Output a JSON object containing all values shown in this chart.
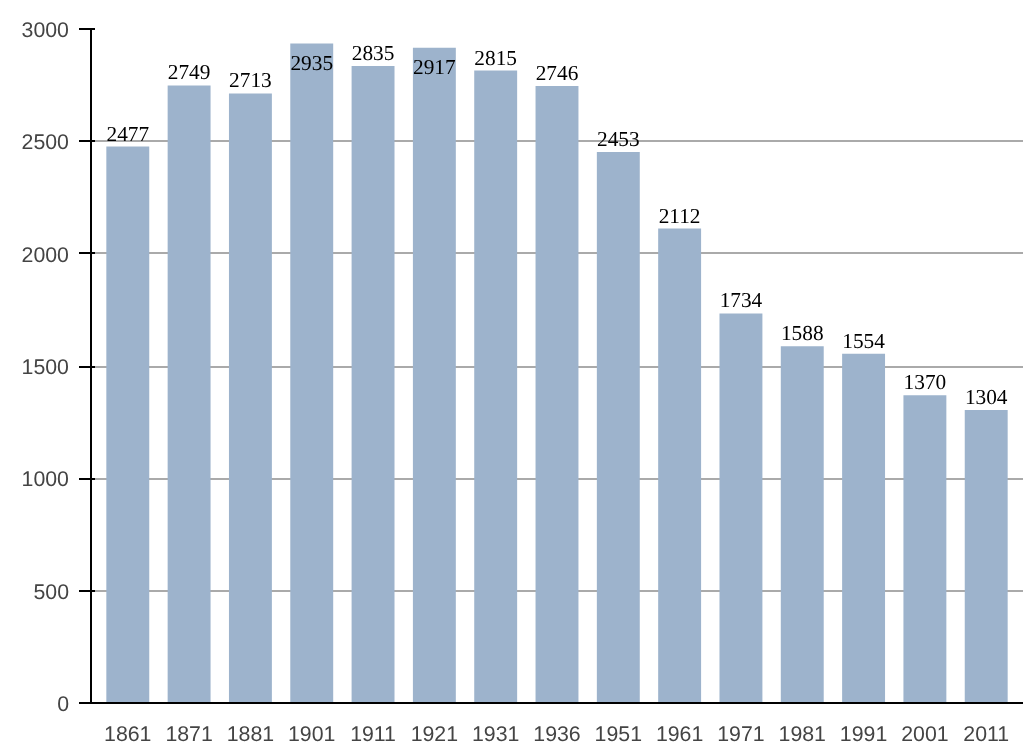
{
  "chart_data": {
    "type": "bar",
    "categories": [
      "1861",
      "1871",
      "1881",
      "1901",
      "1911",
      "1921",
      "1931",
      "1936",
      "1951",
      "1961",
      "1971",
      "1981",
      "1991",
      "2001",
      "2011"
    ],
    "values": [
      2477,
      2749,
      2713,
      2935,
      2835,
      2917,
      2815,
      2746,
      2453,
      2112,
      1734,
      1588,
      1554,
      1370,
      1304
    ],
    "color": "#9db3cc",
    "ylim": [
      0,
      3000
    ],
    "yticks": [
      0,
      500,
      1000,
      1500,
      2000,
      2500,
      3000
    ],
    "grid": "y",
    "data_labels": true
  }
}
